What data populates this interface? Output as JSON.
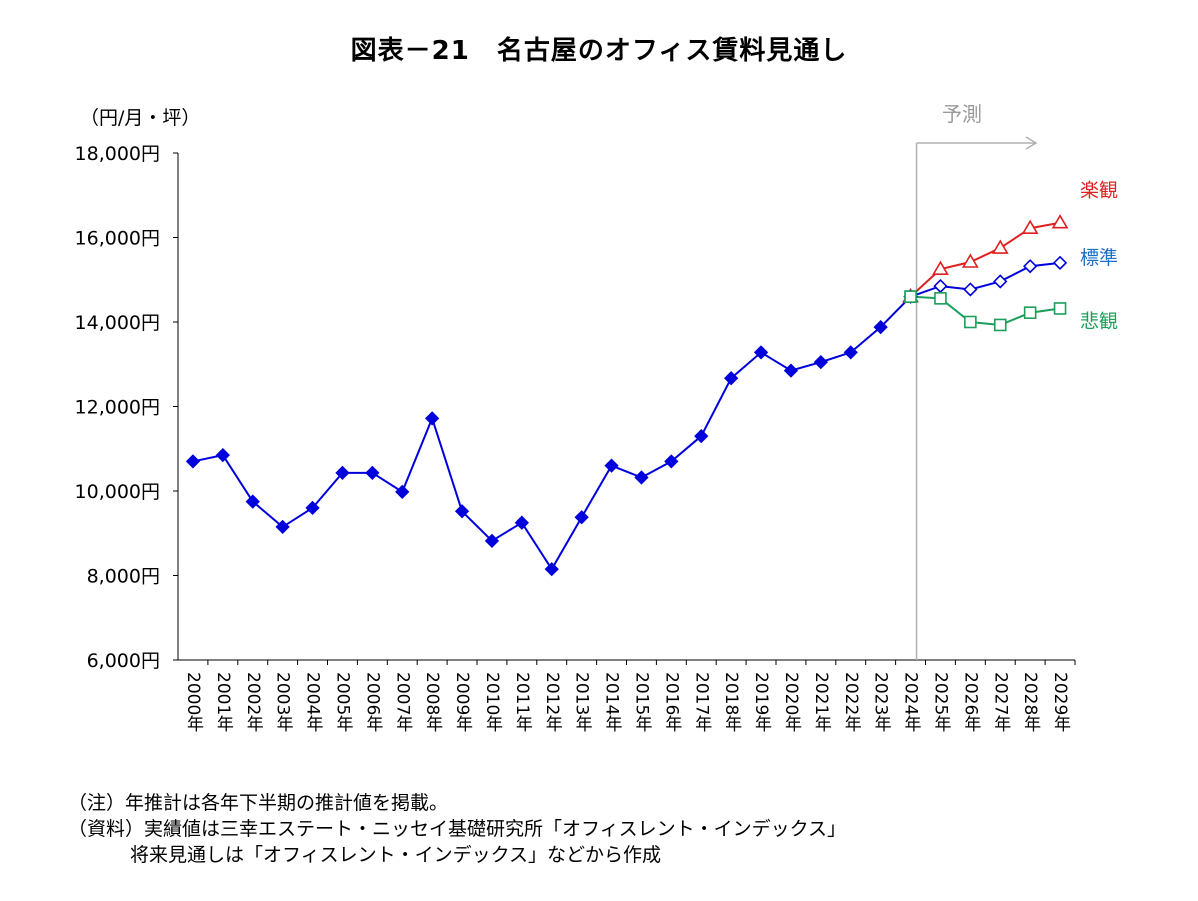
{
  "chart_data": {
    "type": "line",
    "title": "図表－21　名古屋のオフィス賃料見通し",
    "ylabel": "（円/月・坪）",
    "ylim": [
      6000,
      18000
    ],
    "yticks": [
      6000,
      8000,
      10000,
      12000,
      14000,
      16000,
      18000
    ],
    "ytick_labels": [
      "6,000円",
      "8,000円",
      "10,000円",
      "12,000円",
      "14,000円",
      "16,000円",
      "18,000円"
    ],
    "categories": [
      "2000年",
      "2001年",
      "2002年",
      "2003年",
      "2004年",
      "2005年",
      "2006年",
      "2007年",
      "2008年",
      "2009年",
      "2010年",
      "2011年",
      "2012年",
      "2013年",
      "2014年",
      "2015年",
      "2016年",
      "2017年",
      "2018年",
      "2019年",
      "2020年",
      "2021年",
      "2022年",
      "2023年",
      "2024年",
      "2025年",
      "2026年",
      "2027年",
      "2028年",
      "2029年"
    ],
    "forecast_label": "予測",
    "forecast_start": "2024年",
    "grid": false,
    "series": [
      {
        "name": "actual",
        "color": "#0000dd",
        "marker": "diamond-filled",
        "x": [
          "2000年",
          "2001年",
          "2002年",
          "2003年",
          "2004年",
          "2005年",
          "2006年",
          "2007年",
          "2008年",
          "2009年",
          "2010年",
          "2011年",
          "2012年",
          "2013年",
          "2014年",
          "2015年",
          "2016年",
          "2017年",
          "2018年",
          "2019年",
          "2020年",
          "2021年",
          "2022年",
          "2023年",
          "2024年"
        ],
        "values": [
          10700,
          10850,
          9750,
          9150,
          9600,
          10430,
          10430,
          9980,
          11720,
          9520,
          8820,
          9250,
          8150,
          9380,
          10600,
          10320,
          10700,
          11300,
          12670,
          13280,
          12850,
          13050,
          13280,
          13880,
          14600
        ]
      },
      {
        "name": "楽観",
        "color": "#e02020",
        "marker": "triangle-open",
        "x": [
          "2024年",
          "2025年",
          "2026年",
          "2027年",
          "2028年",
          "2029年"
        ],
        "values": [
          14600,
          15250,
          15420,
          15750,
          16220,
          16350
        ]
      },
      {
        "name": "標準",
        "color": "#0000dd",
        "label_color": "#1a6fc9",
        "marker": "diamond-open",
        "x": [
          "2024年",
          "2025年",
          "2026年",
          "2027年",
          "2028年",
          "2029年"
        ],
        "values": [
          14600,
          14850,
          14770,
          14960,
          15320,
          15400
        ]
      },
      {
        "name": "悲観",
        "color": "#1aa05a",
        "marker": "square-open",
        "x": [
          "2024年",
          "2025年",
          "2026年",
          "2027年",
          "2028年",
          "2029年"
        ],
        "values": [
          14600,
          14560,
          14000,
          13930,
          14220,
          14320
        ]
      }
    ]
  },
  "notes": {
    "note1": "（注）年推計は各年下半期の推計値を掲載。",
    "note2": "（資料）実績値は三幸エステート・ニッセイ基礎研究所「オフィスレント・インデックス」",
    "note3": "将来見通しは「オフィスレント・インデックス」などから作成"
  }
}
